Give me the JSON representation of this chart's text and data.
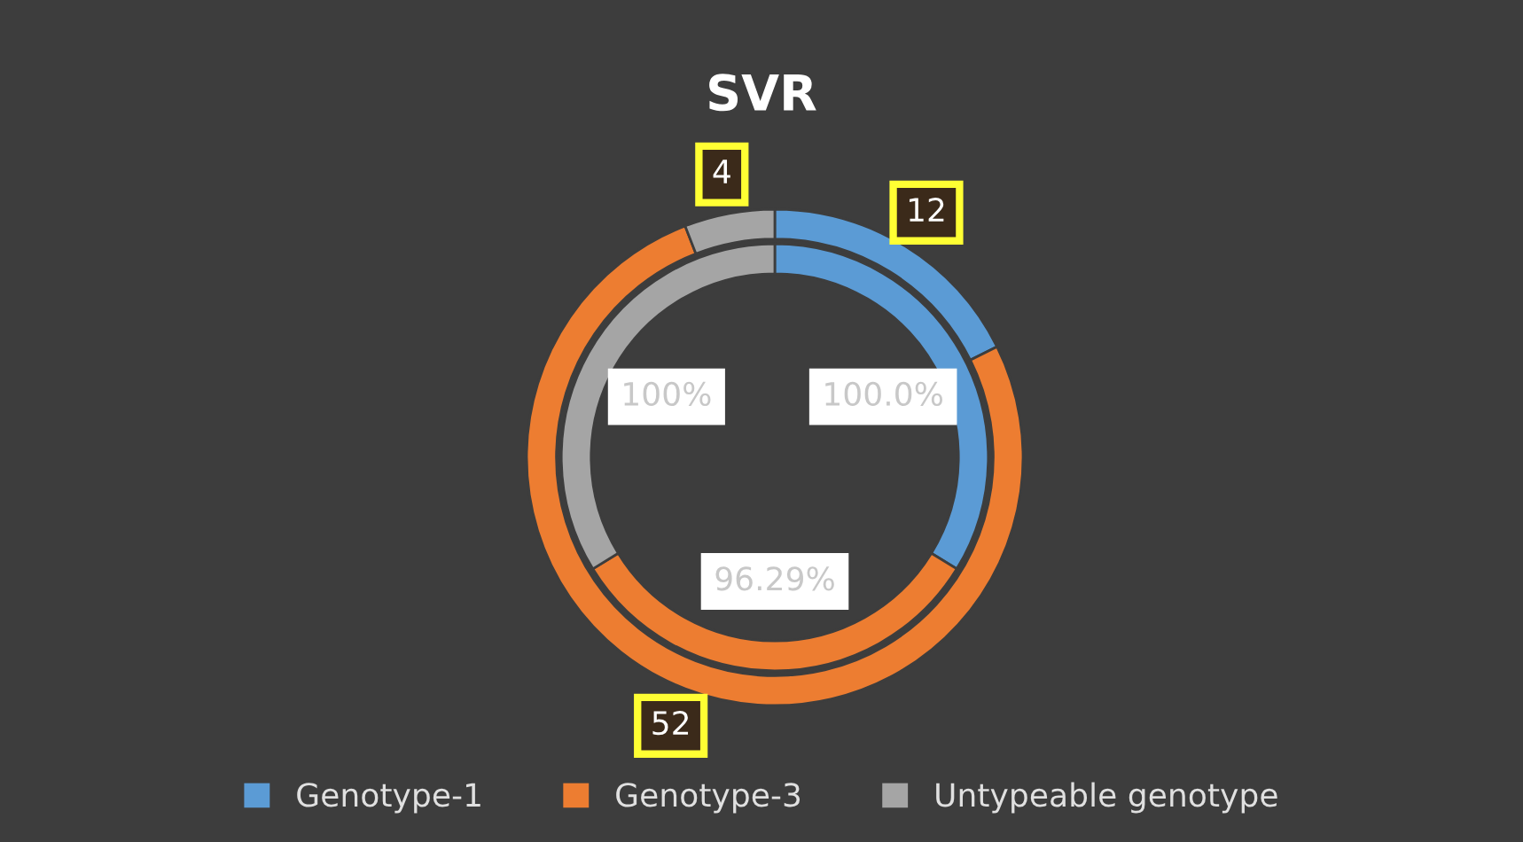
{
  "chart_data": {
    "type": "donut",
    "title": "SVR",
    "categories": [
      "Genotype-1",
      "Genotype-3",
      "Untypeable genotype"
    ],
    "colors": [
      "#5b9bd5",
      "#ed7d31",
      "#a5a5a5"
    ],
    "series": [
      {
        "values": [
          12,
          52,
          4
        ],
        "value_labels": [
          "12",
          "52",
          "4"
        ]
      },
      {
        "values": [
          100,
          96.29,
          100
        ],
        "value_labels": [
          "100.0%",
          "96.29%",
          "100%"
        ]
      }
    ],
    "legend": "bottom"
  }
}
